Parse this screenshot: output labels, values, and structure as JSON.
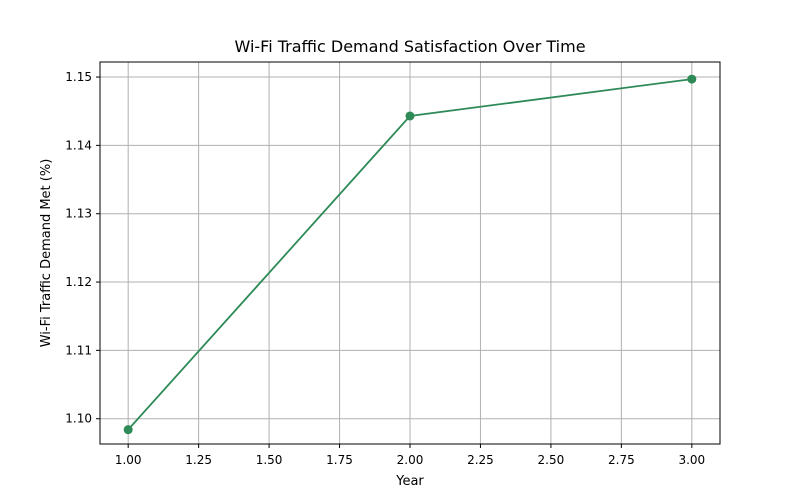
{
  "chart_data": {
    "type": "line",
    "title": "Wi-Fi Traffic Demand Satisfaction Over Time",
    "xlabel": "Year",
    "ylabel": "Wi-Fi Traffic Demand Met (%)",
    "x": [
      1.0,
      2.0,
      3.0
    ],
    "series": [
      {
        "values": [
          1.0984,
          1.1443,
          1.1497
        ],
        "color": "#2e8b57",
        "marker": "circle"
      }
    ],
    "xlim": [
      0.9,
      3.1
    ],
    "ylim": [
      1.0963,
      1.1522
    ],
    "xticks": [
      "1.00",
      "1.25",
      "1.50",
      "1.75",
      "2.00",
      "2.25",
      "2.50",
      "2.75",
      "3.00"
    ],
    "yticks": [
      "1.10",
      "1.11",
      "1.12",
      "1.13",
      "1.14",
      "1.15"
    ],
    "grid": true,
    "legend": false
  }
}
